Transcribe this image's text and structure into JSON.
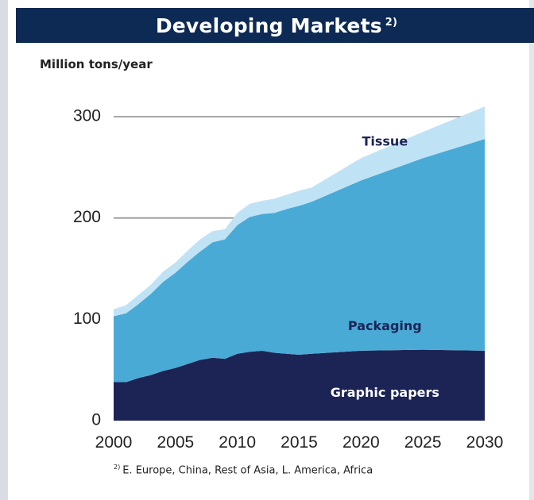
{
  "header": {
    "title": "Developing Markets",
    "title_superscript": "2)"
  },
  "footnote": {
    "marker": "2)",
    "text": "E. Europe, China, Rest of Asia, L. America, Africa"
  },
  "chart_data": {
    "type": "area",
    "stacked": true,
    "title": "Developing Markets",
    "ylabel": "Million tons/year",
    "xlabel": "",
    "xlim": [
      2000,
      2030
    ],
    "ylim": [
      0,
      300
    ],
    "xticks": [
      2000,
      2005,
      2010,
      2015,
      2020,
      2025,
      2030
    ],
    "yticks": [
      0,
      100,
      200,
      300
    ],
    "grid": "horizontal",
    "x": [
      2000,
      2001,
      2002,
      2003,
      2004,
      2005,
      2006,
      2007,
      2008,
      2009,
      2010,
      2011,
      2012,
      2013,
      2014,
      2015,
      2016,
      2020,
      2025,
      2030
    ],
    "series": [
      {
        "name": "Graphic papers",
        "color": "#1c2456",
        "values": [
          38,
          38,
          42,
          45,
          49,
          52,
          56,
          60,
          62,
          61,
          66,
          68,
          69,
          67,
          66,
          65,
          66,
          69,
          70,
          69
        ]
      },
      {
        "name": "Packaging",
        "color": "#4aaad6",
        "values": [
          65,
          68,
          73,
          80,
          88,
          94,
          101,
          107,
          114,
          118,
          127,
          133,
          135,
          138,
          143,
          147,
          150,
          168,
          189,
          209
        ]
      },
      {
        "name": "Tissue",
        "color": "#bfe3f5",
        "values": [
          7,
          8,
          9,
          9,
          10,
          10,
          11,
          12,
          11,
          10,
          12,
          13,
          13,
          14,
          14,
          15,
          14,
          22,
          26,
          32
        ]
      }
    ],
    "series_label_values": {
      "Tissue": [
        2020,
        275
      ],
      "Packaging": [
        2020,
        93
      ],
      "Graphic papers": [
        2020,
        27
      ]
    }
  }
}
